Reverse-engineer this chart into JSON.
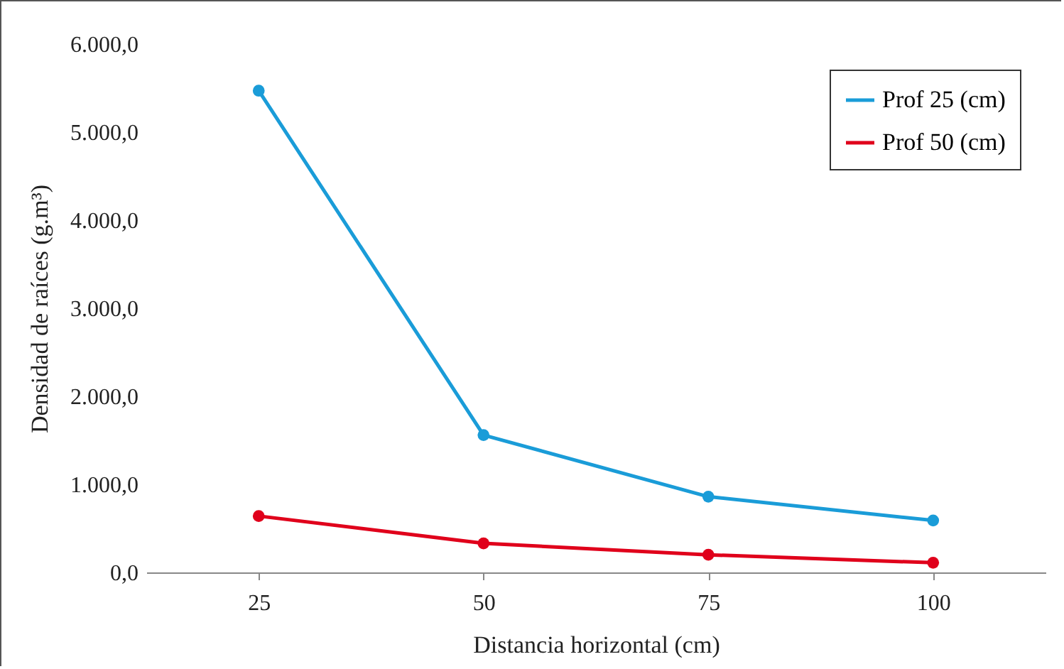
{
  "chart_data": {
    "type": "line",
    "xlabel": "Distancia horizontal (cm)",
    "ylabel": "Densidad de raíces (g.m³)",
    "categories": [
      "25",
      "50",
      "75",
      "100"
    ],
    "series": [
      {
        "name": "Prof 25 (cm)",
        "color": "#1a9cd8",
        "values": [
          5470,
          1560,
          860,
          590
        ]
      },
      {
        "name": "Prof 50 (cm)",
        "color": "#e0001b",
        "values": [
          640,
          330,
          200,
          110
        ]
      }
    ],
    "ylim": [
      0,
      6000
    ],
    "yticks": [
      {
        "value": 0,
        "label": "0,0"
      },
      {
        "value": 1000,
        "label": "1.000,0"
      },
      {
        "value": 2000,
        "label": "2.000,0"
      },
      {
        "value": 3000,
        "label": "3.000,0"
      },
      {
        "value": 4000,
        "label": "4.000,0"
      },
      {
        "value": 5000,
        "label": "5.000,0"
      },
      {
        "value": 6000,
        "label": "6.000,0"
      }
    ],
    "grid": false,
    "legend": "top right",
    "marker": "circle",
    "line_style": "solid"
  }
}
